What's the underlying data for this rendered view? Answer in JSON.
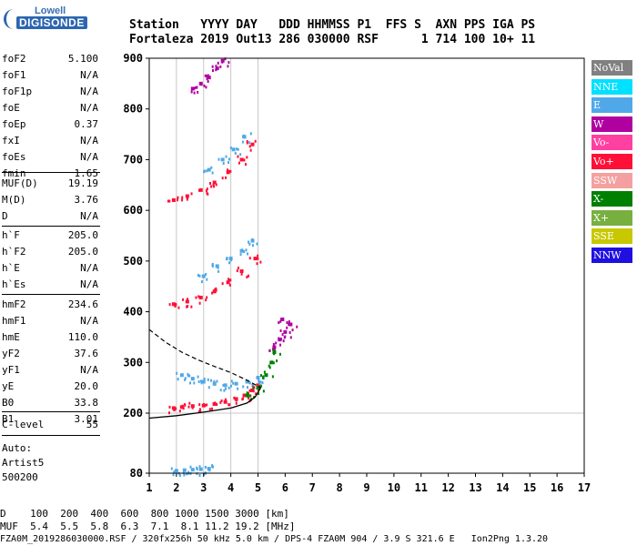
{
  "logo": {
    "line1": "Lowell",
    "line2": "DIGISONDE"
  },
  "header": {
    "labels": "Station   YYYY DAY   DDD HHMMSS P1  FFS S  AXN PPS IGA PS",
    "values": "Fortaleza 2019 Out13 286 030000 RSF      1 714 100 10+ 11"
  },
  "parameters": [
    {
      "name": "foF2",
      "value": "5.100"
    },
    {
      "name": "foF1",
      "value": "N/A"
    },
    {
      "name": "foF1p",
      "value": "N/A"
    },
    {
      "name": "foE",
      "value": "N/A"
    },
    {
      "name": "foEp",
      "value": "0.37"
    },
    {
      "name": "fxI",
      "value": "N/A"
    },
    {
      "name": "foEs",
      "value": "N/A"
    },
    {
      "name": "fmin",
      "value": "1.65"
    },
    {
      "name": "MUF(D)",
      "value": "19.19"
    },
    {
      "name": "M(D)",
      "value": "3.76"
    },
    {
      "name": "D",
      "value": "N/A"
    },
    {
      "name": "h`F",
      "value": "205.0"
    },
    {
      "name": "h`F2",
      "value": "205.0"
    },
    {
      "name": "h`E",
      "value": "N/A"
    },
    {
      "name": "h`Es",
      "value": "N/A"
    },
    {
      "name": "hmF2",
      "value": "234.6"
    },
    {
      "name": "hmF1",
      "value": "N/A"
    },
    {
      "name": "hmE",
      "value": "110.0"
    },
    {
      "name": "yF2",
      "value": "37.6"
    },
    {
      "name": "yF1",
      "value": "N/A"
    },
    {
      "name": "yE",
      "value": "20.0"
    },
    {
      "name": "B0",
      "value": "33.8"
    },
    {
      "name": "B1",
      "value": "3.01"
    },
    {
      "name": "C-level",
      "value": "55"
    }
  ],
  "autoscaling": {
    "line1": "Auto:",
    "line2": "Artist5",
    "line3": "500200"
  },
  "legend": [
    {
      "label": "NoVal",
      "color": "#808080"
    },
    {
      "label": "NNE",
      "color": "#00e0ff"
    },
    {
      "label": "E",
      "color": "#50a8e8"
    },
    {
      "label": "W",
      "color": "#b000a0"
    },
    {
      "label": "Vo-",
      "color": "#ff40a0"
    },
    {
      "label": "Vo+",
      "color": "#ff1038"
    },
    {
      "label": "SSW",
      "color": "#f4a0a0"
    },
    {
      "label": "X-",
      "color": "#008000"
    },
    {
      "label": "X+",
      "color": "#78b040"
    },
    {
      "label": "SSE",
      "color": "#c8c800"
    },
    {
      "label": "NNW",
      "color": "#2010e0"
    }
  ],
  "footer": {
    "distance_row": "D    100  200  400  600  800 1000 1500 3000 [km]",
    "muf_row": "MUF  5.4  5.5  5.8  6.3  7.1  8.1 11.2 19.2 [MHz]",
    "file_line": "FZA0M_2019286030000.RSF / 320fx256h 50 kHz 5.0 km / DPS-4 FZA0M 904 / 3.9 S 321.6 E   Ion2Png 1.3.20"
  },
  "chart_data": {
    "type": "scatter",
    "x_ticks": [
      "1",
      "2",
      "3",
      "4",
      "5",
      "6",
      "7",
      "8",
      "9",
      "10",
      "11",
      "12",
      "13",
      "14",
      "15",
      "16",
      "17"
    ],
    "y_ticks": [
      "80",
      "200",
      "300",
      "400",
      "500",
      "600",
      "700",
      "800",
      "900"
    ],
    "xlim": [
      1,
      17
    ],
    "y_axis_scale": "piecewise: 80 to 200, then linear 200 to 900",
    "grid": "vertical at frequencies 2-5, horizontal at 200",
    "legend_position": "right",
    "traces": [
      {
        "name": "Vo+",
        "color": "#ff1038",
        "points": [
          [
            1.9,
            210
          ],
          [
            2.2,
            212
          ],
          [
            2.6,
            214
          ],
          [
            3.0,
            215
          ],
          [
            3.4,
            218
          ],
          [
            3.8,
            222
          ],
          [
            4.2,
            228
          ],
          [
            4.5,
            235
          ],
          [
            4.8,
            245
          ],
          [
            5.0,
            255
          ]
        ]
      },
      {
        "name": "E",
        "color": "#50a8e8",
        "points": [
          [
            2.2,
            275
          ],
          [
            2.6,
            268
          ],
          [
            3.0,
            262
          ],
          [
            3.4,
            258
          ],
          [
            3.8,
            255
          ],
          [
            4.2,
            258
          ],
          [
            4.6,
            262
          ],
          [
            5.0,
            270
          ]
        ]
      },
      {
        "name": "X-",
        "color": "#008000",
        "points": [
          [
            4.6,
            235
          ],
          [
            5.0,
            250
          ],
          [
            5.3,
            275
          ],
          [
            5.5,
            300
          ],
          [
            5.6,
            320
          ]
        ]
      },
      {
        "name": "W",
        "color": "#b000a0",
        "points": [
          [
            5.6,
            330
          ],
          [
            5.8,
            345
          ],
          [
            6.0,
            360
          ],
          [
            6.2,
            375
          ],
          [
            5.9,
            385
          ]
        ]
      },
      {
        "name": "Vo+",
        "color": "#ff1038",
        "points": [
          [
            1.9,
            415
          ],
          [
            2.4,
            420
          ],
          [
            2.9,
            428
          ],
          [
            3.4,
            440
          ],
          [
            3.9,
            458
          ],
          [
            4.4,
            480
          ],
          [
            4.9,
            505
          ]
        ]
      },
      {
        "name": "E",
        "color": "#50a8e8",
        "points": [
          [
            3.0,
            470
          ],
          [
            3.5,
            490
          ],
          [
            4.0,
            505
          ],
          [
            4.4,
            520
          ],
          [
            4.8,
            540
          ]
        ]
      },
      {
        "name": "Vo+",
        "color": "#ff1038",
        "points": [
          [
            1.9,
            620
          ],
          [
            2.4,
            628
          ],
          [
            2.9,
            640
          ],
          [
            3.4,
            655
          ],
          [
            3.9,
            675
          ],
          [
            4.4,
            700
          ],
          [
            4.8,
            730
          ]
        ]
      },
      {
        "name": "E",
        "color": "#50a8e8",
        "points": [
          [
            3.2,
            680
          ],
          [
            3.7,
            700
          ],
          [
            4.1,
            720
          ],
          [
            4.5,
            745
          ]
        ]
      },
      {
        "name": "W",
        "color": "#b000a0",
        "points": [
          [
            2.6,
            840
          ],
          [
            2.9,
            850
          ],
          [
            3.2,
            862
          ],
          [
            3.5,
            880
          ],
          [
            3.7,
            895
          ]
        ]
      },
      {
        "name": "E",
        "color": "#50a8e8",
        "points": [
          [
            2.0,
            85
          ],
          [
            2.3,
            86
          ],
          [
            2.6,
            87
          ],
          [
            2.9,
            88
          ],
          [
            3.2,
            89
          ]
        ]
      }
    ],
    "profile_curve": {
      "name": "profile",
      "points": [
        [
          1.0,
          190
        ],
        [
          2.0,
          195
        ],
        [
          3.0,
          202
        ],
        [
          4.0,
          210
        ],
        [
          4.6,
          220
        ],
        [
          4.9,
          232
        ],
        [
          5.1,
          250
        ]
      ]
    },
    "extrapolated_curve": {
      "name": "extrapolated",
      "points": [
        [
          1.0,
          365
        ],
        [
          1.6,
          340
        ],
        [
          2.2,
          320
        ],
        [
          2.8,
          305
        ],
        [
          3.4,
          292
        ],
        [
          4.0,
          280
        ],
        [
          4.6,
          265
        ],
        [
          5.1,
          250
        ]
      ]
    }
  }
}
